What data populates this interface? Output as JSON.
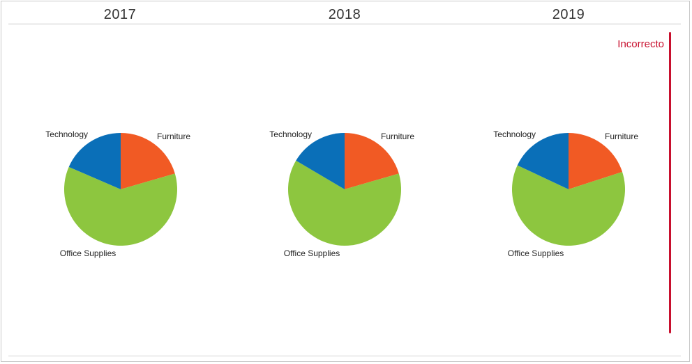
{
  "note": "Incorrecto",
  "colors": {
    "Technology": "#0a6fb8",
    "Furniture": "#f15a24",
    "Office Supplies": "#8dc63f",
    "note": "#c8102e"
  },
  "chart_data": [
    {
      "type": "pie",
      "title": "2017",
      "categories": [
        "Furniture",
        "Office Supplies",
        "Technology"
      ],
      "values": [
        0.205,
        0.61,
        0.185
      ]
    },
    {
      "type": "pie",
      "title": "2018",
      "categories": [
        "Furniture",
        "Office Supplies",
        "Technology"
      ],
      "values": [
        0.205,
        0.63,
        0.165
      ]
    },
    {
      "type": "pie",
      "title": "2019",
      "categories": [
        "Furniture",
        "Office Supplies",
        "Technology"
      ],
      "values": [
        0.2,
        0.62,
        0.18
      ]
    }
  ]
}
